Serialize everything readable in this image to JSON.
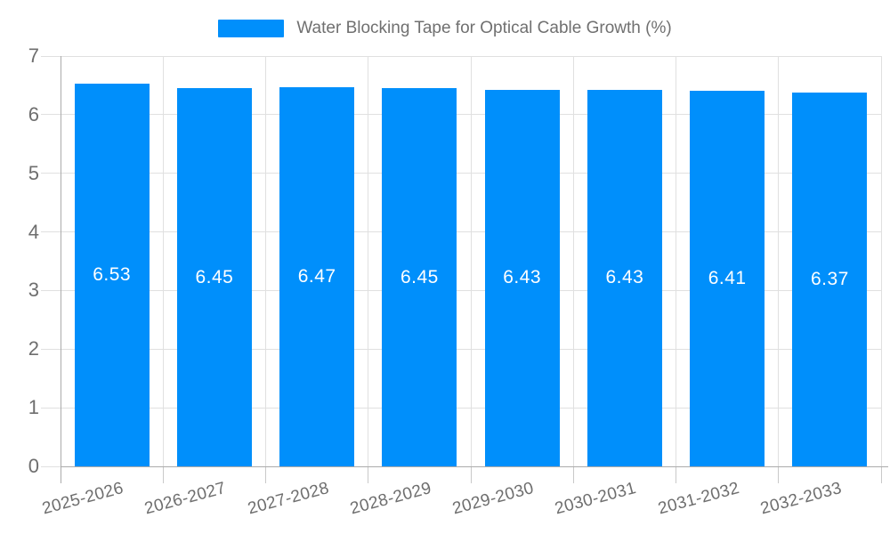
{
  "legend": {
    "label": "Water Blocking Tape for Optical Cable Growth (%)",
    "swatch_color": "#008FFB"
  },
  "chart_data": {
    "type": "bar",
    "title": "Water Blocking Tape for Optical Cable Growth (%)",
    "categories": [
      "2025-2026",
      "2026-2027",
      "2027-2028",
      "2028-2029",
      "2029-2030",
      "2030-2031",
      "2031-2032",
      "2032-2033"
    ],
    "series": [
      {
        "name": "Water Blocking Tape for Optical Cable Growth (%)",
        "values": [
          6.53,
          6.45,
          6.47,
          6.45,
          6.43,
          6.43,
          6.41,
          6.37
        ]
      }
    ],
    "value_labels": [
      "6.53",
      "6.45",
      "6.47",
      "6.45",
      "6.43",
      "6.43",
      "6.41",
      "6.37"
    ],
    "xlabel": "",
    "ylabel": "",
    "ylim": [
      0,
      7
    ],
    "yticks": [
      0,
      1,
      2,
      3,
      4,
      5,
      6,
      7
    ],
    "grid": true,
    "legend_position": "top",
    "colors": {
      "bar": "#008FFB",
      "grid_line": "#e0e0e0",
      "axis_line": "#ababab",
      "tick": "#c9c9c9",
      "axis_label": "#6e6e6e",
      "legend_text": "#707070",
      "value_label": "#ffffff",
      "background": "#ffffff"
    }
  }
}
